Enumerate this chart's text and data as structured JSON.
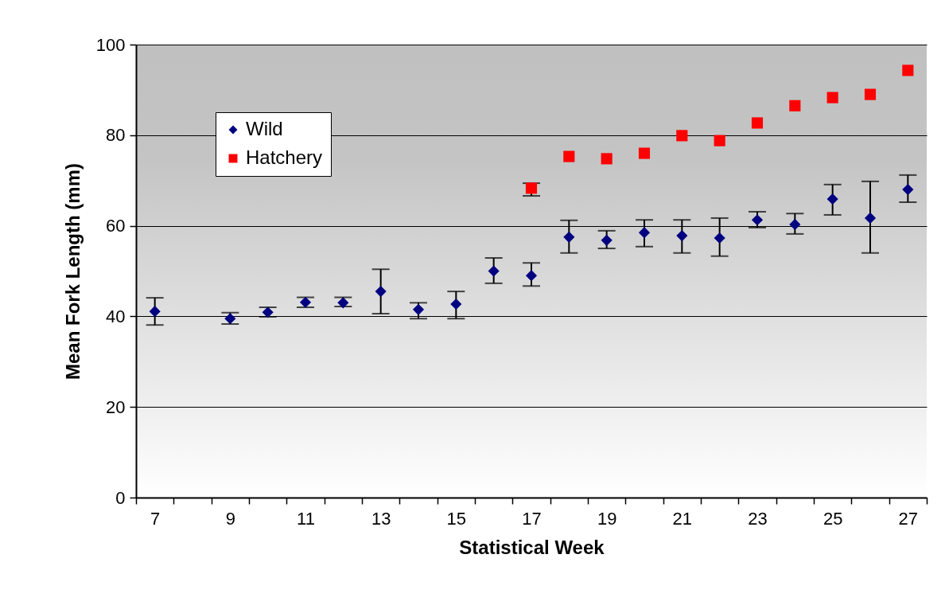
{
  "chart_data": {
    "type": "scatter",
    "xlabel": "Statistical Week",
    "ylabel": "Mean Fork Length (mm)",
    "categories": [
      "7",
      null,
      "9",
      null,
      "11",
      null,
      "13",
      null,
      "15",
      null,
      "17",
      null,
      "19",
      null,
      "21",
      null,
      "23",
      null,
      "25",
      null,
      "27"
    ],
    "series": [
      {
        "name": "Wild",
        "color": "#000080",
        "marker": "diamond",
        "values": [
          41.1,
          null,
          39.5,
          40.9,
          43.1,
          43,
          45.5,
          41.5,
          42.7,
          50,
          49,
          57.5,
          56.8,
          58.5,
          57.8,
          57.3,
          61.3,
          60.3,
          65.9,
          61.7,
          68
        ],
        "errors": [
          [
            38.1,
            44.1
          ],
          null,
          [
            38.3,
            40.8
          ],
          [
            39.9,
            42
          ],
          [
            42,
            44.2
          ],
          [
            42.2,
            44.2
          ],
          [
            40.6,
            50.4
          ],
          [
            39.5,
            43
          ],
          [
            39.5,
            45.5
          ],
          [
            47.3,
            52.9
          ],
          [
            46.7,
            51.8
          ],
          [
            54,
            61.2
          ],
          [
            55,
            58.9
          ],
          [
            55.4,
            61.3
          ],
          [
            54,
            61.3
          ],
          [
            53.3,
            61.7
          ],
          [
            59.6,
            63.1
          ],
          [
            58.2,
            62.7
          ],
          [
            62.4,
            69.1
          ],
          [
            54,
            69.8
          ],
          [
            65.2,
            71.2
          ]
        ]
      },
      {
        "name": "Hatchery",
        "color": "#ff0000",
        "marker": "square",
        "values": [
          null,
          null,
          null,
          null,
          null,
          null,
          null,
          null,
          null,
          null,
          68.3,
          75.3,
          74.8,
          76,
          79.9,
          78.8,
          82.7,
          86.5,
          88.3,
          89,
          94.3
        ],
        "errors": [
          null,
          null,
          null,
          null,
          null,
          null,
          null,
          null,
          null,
          null,
          [
            66.6,
            69.4
          ],
          null,
          null,
          null,
          null,
          null,
          null,
          null,
          null,
          null,
          null
        ]
      }
    ],
    "ylim": [
      0,
      100
    ],
    "yticks": [
      0,
      20,
      40,
      60,
      80,
      100
    ],
    "grid": "y",
    "legend": "top left"
  }
}
